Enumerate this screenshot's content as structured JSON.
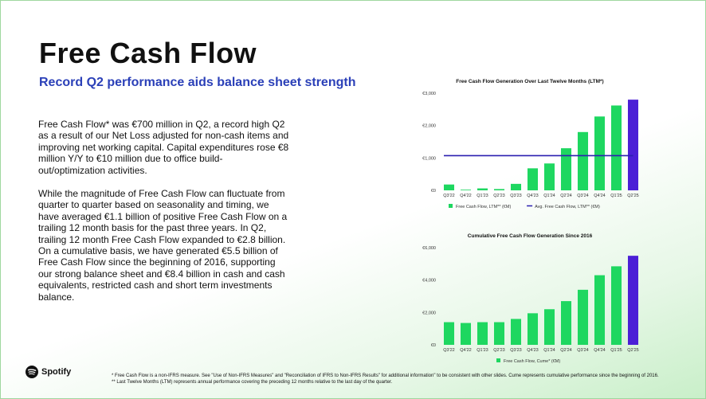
{
  "slide": {
    "title": "Free Cash Flow",
    "subtitle": "Record Q2 performance aids balance sheet strength",
    "paragraphs": [
      "Free Cash Flow* was €700 million in Q2, a record high Q2 as a result of our Net Loss adjusted for non-cash items and improving net working capital. Capital expenditures rose €8 million Y/Y to €10 million due to office build-out/optimization activities.",
      "While the magnitude of Free Cash Flow can fluctuate from quarter to quarter based on seasonality and timing, we have averaged €1.1 billion of positive Free Cash Flow on a trailing 12 month basis for the past three years. In Q2, trailing 12 month Free Cash Flow expanded to €2.8 billion. On a cumulative basis, we have generated €5.5 billion of Free Cash Flow since the beginning of 2016, supporting our strong balance sheet and €8.4 billion in cash and cash equivalents, restricted cash and short term investments balance."
    ],
    "logo_text": "Spotify",
    "footnotes": [
      "* Free Cash Flow is a non-IFRS measure. See \"Use of Non-IFRS Measures\" and \"Reconciliation of IFRS to Non-IFRS Results\" for additional information\" to be consistent with other slides. Cume represents cumulative performance since the beginning of 2016.",
      "** Last Twelve Months (LTM) represents annual performance covering the preceding 12 months relative to the last day of the quarter."
    ]
  },
  "colors": {
    "bar_green": "#1ed760",
    "bar_highlight": "#4b1fd6",
    "avg_line": "#2b1fb0",
    "subtitle": "#2b40b8"
  },
  "chart_data": [
    {
      "type": "bar",
      "title": "Free Cash Flow Generation Over Last Twelve Months (LTM*)",
      "categories": [
        "Q3'22",
        "Q4'22",
        "Q1'23",
        "Q2'23",
        "Q3'23",
        "Q4'23",
        "Q1'24",
        "Q2'24",
        "Q3'24",
        "Q4'24",
        "Q1'25",
        "Q2'25"
      ],
      "series": [
        {
          "name": "Free Cash Flow, LTM** (€M)",
          "values": [
            180,
            20,
            60,
            40,
            200,
            680,
            830,
            1300,
            1800,
            2280,
            2620,
            2800
          ]
        },
        {
          "name": "Avg. Free Cash Flow, LTM** (€M)",
          "values": [
            1070,
            1070,
            1070,
            1070,
            1070,
            1070,
            1070,
            1070,
            1070,
            1070,
            1070,
            1070
          ]
        }
      ],
      "yticks": [
        "€0",
        "€1,000",
        "€2,000",
        "€3,000"
      ],
      "ylim": [
        0,
        3000
      ],
      "legend_position": "bottom",
      "highlight_last": true
    },
    {
      "type": "bar",
      "title": "Cumulative Free Cash Flow Generation Since 2016",
      "categories": [
        "Q3'22",
        "Q4'22",
        "Q1'23",
        "Q2'23",
        "Q3'23",
        "Q4'23",
        "Q1'24",
        "Q2'24",
        "Q3'24",
        "Q4'24",
        "Q1'25",
        "Q2'25"
      ],
      "series": [
        {
          "name": "Free Cash Flow, Cume* (€M)",
          "values": [
            1400,
            1350,
            1400,
            1400,
            1600,
            1950,
            2200,
            2700,
            3400,
            4300,
            4850,
            5500
          ]
        }
      ],
      "yticks": [
        "€0",
        "€2,000",
        "€4,000",
        "€6,000"
      ],
      "ylim": [
        0,
        6000
      ],
      "legend_position": "bottom",
      "highlight_last": true
    }
  ]
}
